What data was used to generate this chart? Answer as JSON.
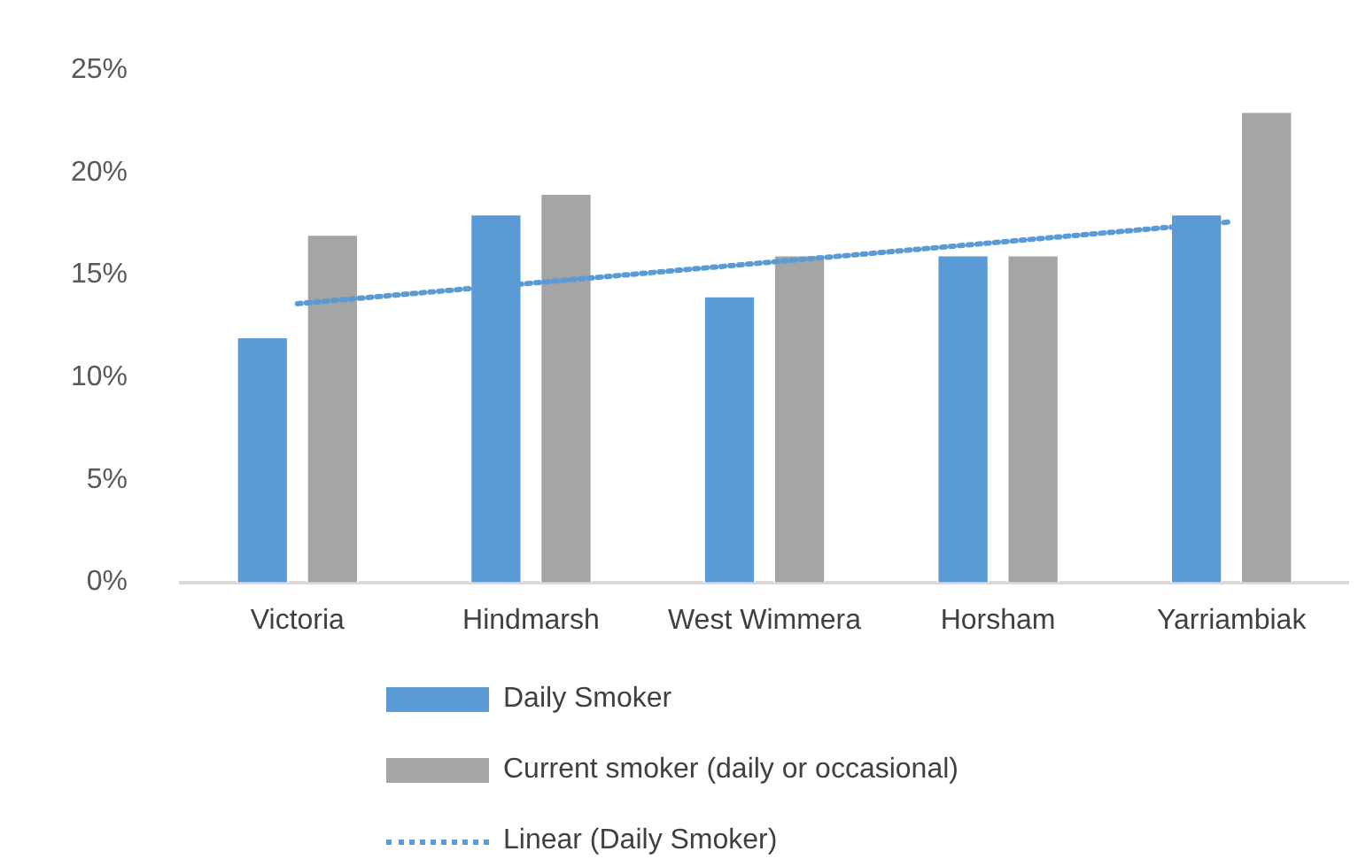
{
  "chart_data": {
    "type": "bar",
    "categories": [
      "Victoria",
      "Hindmarsh",
      "West Wimmera",
      "Horsham",
      "Yarriambiak"
    ],
    "series": [
      {
        "name": "Daily Smoker",
        "color": "#5b9bd5",
        "values": [
          12,
          18,
          14,
          16,
          18
        ]
      },
      {
        "name": "Current smoker (daily or occasional)",
        "color": "#a5a5a5",
        "values": [
          17,
          19,
          16,
          16,
          23
        ]
      },
      {
        "name": "Linear (Daily Smoker)",
        "type": "line",
        "color": "#5b9bd5",
        "line_style": "dotted",
        "marker": "none",
        "values": [
          13.6,
          14.6,
          15.6,
          16.6,
          17.6
        ]
      }
    ],
    "ylim": [
      0,
      25
    ],
    "yticks": [
      {
        "value": 0,
        "label": "0%"
      },
      {
        "value": 5,
        "label": "5%"
      },
      {
        "value": 10,
        "label": "10%"
      },
      {
        "value": 15,
        "label": "15%"
      },
      {
        "value": 20,
        "label": "20%"
      },
      {
        "value": 25,
        "label": "25%"
      }
    ],
    "grid": false,
    "legend": "bottom"
  }
}
